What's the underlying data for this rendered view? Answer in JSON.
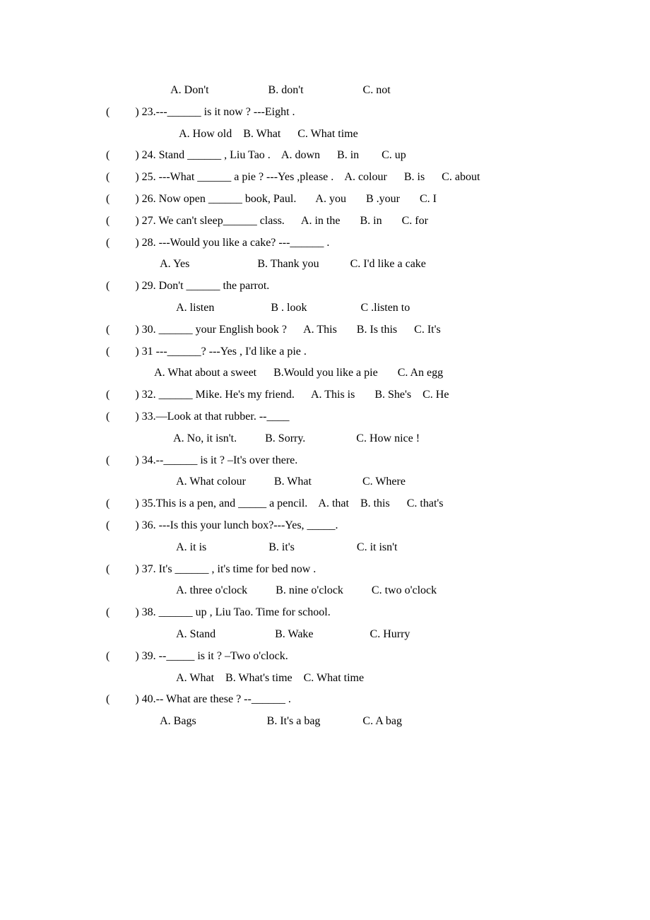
{
  "lines": [
    "        A. Don't                     B. don't                     C. not",
    "(         ) 23.---______ is it now ? ---Eight .",
    "           A. How old    B. What      C. What time",
    "(         ) 24. Stand ______ , Liu Tao .    A. down      B. in        C. up",
    "(         ) 25. ---What ______ a pie ? ---Yes ,please .    A. colour      B. is      C. about",
    "(         ) 26. Now open ______ book, Paul.       A. you       B .your       C. I",
    "(         ) 27. We can't sleep______ class.      A. in the       B. in       C. for",
    "(         ) 28. ---Would you like a cake? ---______ .",
    "        A. Yes                        B. Thank you           C. I'd like a cake",
    "(         ) 29. Don't ______ the parrot.",
    "          A. listen                    B . look                   C .listen to",
    "(         ) 30. ______ your English book ?      A. This       B. Is this      C. It's",
    "(         ) 31 ---______? ---Yes , I'd like a pie .",
    "      A. What about a sweet      B.Would you like a pie       C. An egg",
    "(         ) 32. ______ Mike. He's my friend.      A. This is       B. She's    C. He",
    "(         ) 33.—Look at that rubber. --____",
    "         A. No, it isn't.          B. Sorry.                  C. How nice !",
    "(         ) 34.--______ is it ? –It's over there.",
    "          A. What colour          B. What                  C. Where",
    "(         ) 35.This is a pen, and _____ a pencil.    A. that    B. this      C. that's",
    "(         ) 36. ---Is this your lunch box?---Yes, _____.",
    "          A. it is                      B. it's                      C. it isn't",
    "(         ) 37. It's ______ , it's time for bed now .",
    "          A. three o'clock          B. nine o'clock          C. two o'clock",
    "(         ) 38. ______ up , Liu Tao. Time for school.",
    "          A. Stand                     B. Wake                    C. Hurry",
    "(         ) 39. --_____ is it ? –Two o'clock.",
    "          A. What    B. What's time    C. What time",
    "(         ) 40.-- What are these ? --______ .",
    "        A. Bags                         B. It's a bag               C. A bag"
  ]
}
